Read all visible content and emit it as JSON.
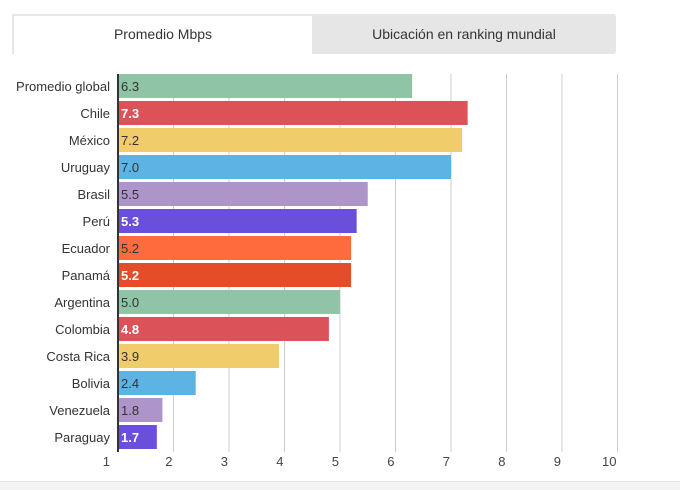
{
  "tabs": [
    {
      "label": "Promedio Mbps",
      "active": true
    },
    {
      "label": "Ubicación en ranking mundial",
      "active": false
    }
  ],
  "chart_data": {
    "type": "bar",
    "orientation": "horizontal",
    "categories": [
      "Promedio global",
      "Chile",
      "México",
      "Uruguay",
      "Brasil",
      "Perú",
      "Ecuador",
      "Panamá",
      "Argentina",
      "Colombia",
      "Costa Rica",
      "Bolivia",
      "Venezuela",
      "Paraguay"
    ],
    "values": [
      6.3,
      7.3,
      7.2,
      7.0,
      5.5,
      5.3,
      5.2,
      5.2,
      5.0,
      4.8,
      3.9,
      2.4,
      1.8,
      1.7
    ],
    "value_labels": [
      "6.3",
      "7.3",
      "7.2",
      "7.0",
      "5.5",
      "5.3",
      "5.2",
      "5.2",
      "5.0",
      "4.8",
      "3.9",
      "2.4",
      "1.8",
      "1.7"
    ],
    "colors": [
      "#8fc4a6",
      "#db5359",
      "#f0cc6b",
      "#5db4e4",
      "#ad95c9",
      "#6a4fdc",
      "#ff6b3d",
      "#e44d27",
      "#8fc4a6",
      "#db5359",
      "#f0cc6b",
      "#5db4e4",
      "#ad95c9",
      "#6a4fdc"
    ],
    "label_colors": [
      "#333333",
      "#ffffff",
      "#333333",
      "#333333",
      "#333333",
      "#ffffff",
      "#333333",
      "#ffffff",
      "#333333",
      "#ffffff",
      "#333333",
      "#333333",
      "#333333",
      "#ffffff"
    ],
    "xticks": [
      "1",
      "2",
      "3",
      "4",
      "5",
      "6",
      "7",
      "8",
      "9",
      "10"
    ],
    "xlim": [
      1,
      10
    ],
    "grid": true,
    "title": "",
    "xlabel": "",
    "ylabel": ""
  }
}
